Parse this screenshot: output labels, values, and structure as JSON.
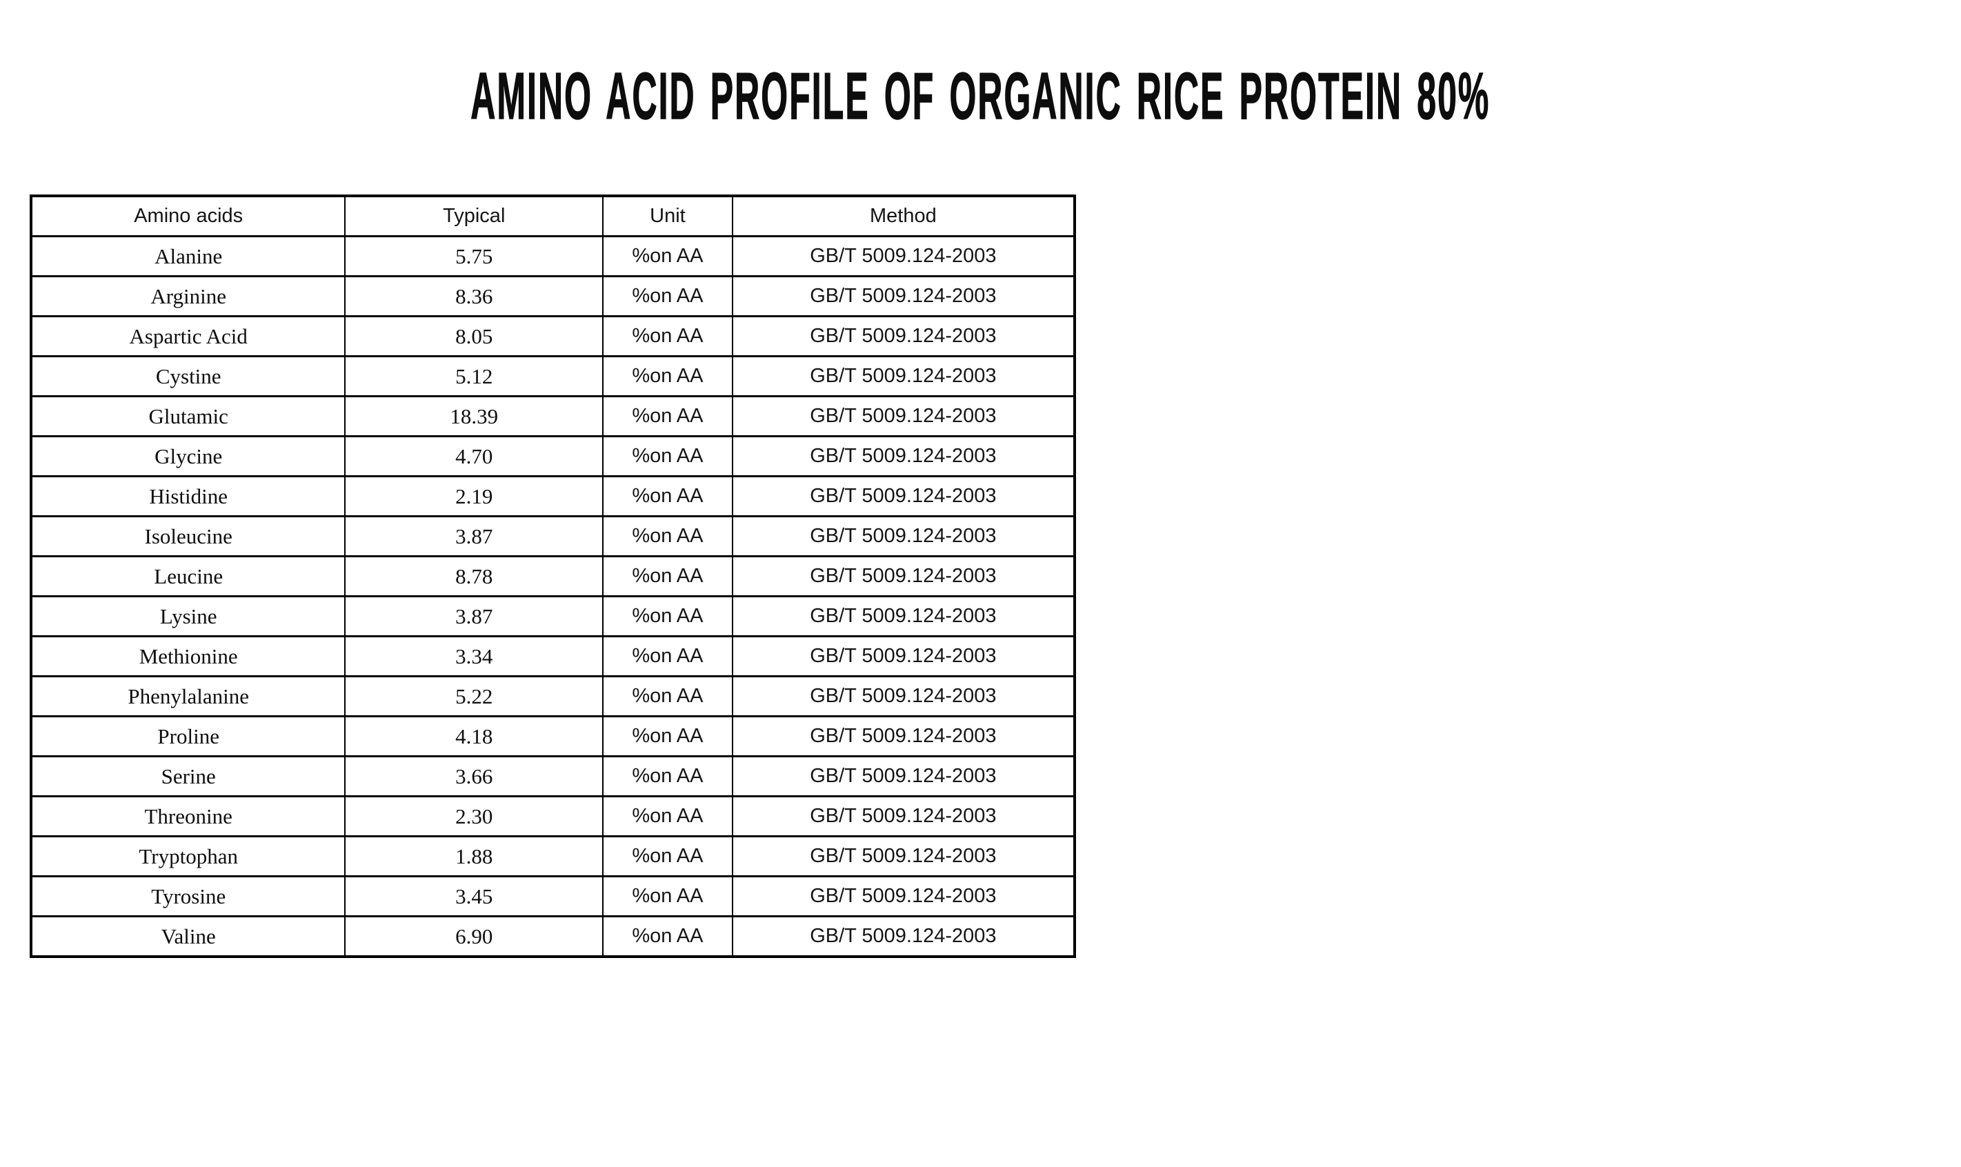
{
  "page": {
    "background_color": "#ffffff",
    "text_color": "#111111",
    "border_color": "#000000"
  },
  "title": "AMINO ACID PROFILE OF ORGANIC RICE PROTEIN 80%",
  "table": {
    "columns": [
      "Amino acids",
      "Typical",
      "Unit",
      "Method"
    ],
    "rows": [
      [
        "Alanine",
        "5.75",
        "%on AA",
        "GB/T 5009.124-2003"
      ],
      [
        "Arginine",
        "8.36",
        "%on AA",
        "GB/T 5009.124-2003"
      ],
      [
        "Aspartic Acid",
        "8.05",
        "%on AA",
        "GB/T 5009.124-2003"
      ],
      [
        "Cystine",
        "5.12",
        "%on AA",
        "GB/T 5009.124-2003"
      ],
      [
        "Glutamic",
        "18.39",
        "%on AA",
        "GB/T 5009.124-2003"
      ],
      [
        "Glycine",
        "4.70",
        "%on AA",
        "GB/T 5009.124-2003"
      ],
      [
        "Histidine",
        "2.19",
        "%on AA",
        "GB/T 5009.124-2003"
      ],
      [
        "Isoleucine",
        "3.87",
        "%on AA",
        "GB/T 5009.124-2003"
      ],
      [
        "Leucine",
        "8.78",
        "%on AA",
        "GB/T 5009.124-2003"
      ],
      [
        "Lysine",
        "3.87",
        "%on AA",
        "GB/T 5009.124-2003"
      ],
      [
        "Methionine",
        "3.34",
        "%on AA",
        "GB/T 5009.124-2003"
      ],
      [
        "Phenylalanine",
        "5.22",
        "%on AA",
        "GB/T 5009.124-2003"
      ],
      [
        "Proline",
        "4.18",
        "%on AA",
        "GB/T 5009.124-2003"
      ],
      [
        "Serine",
        "3.66",
        "%on AA",
        "GB/T 5009.124-2003"
      ],
      [
        "Threonine",
        "2.30",
        "%on AA",
        "GB/T 5009.124-2003"
      ],
      [
        "Tryptophan",
        "1.88",
        "%on AA",
        "GB/T 5009.124-2003"
      ],
      [
        "Tyrosine",
        "3.45",
        "%on AA",
        "GB/T 5009.124-2003"
      ],
      [
        "Valine",
        "6.90",
        "%on AA",
        "GB/T 5009.124-2003"
      ]
    ]
  }
}
